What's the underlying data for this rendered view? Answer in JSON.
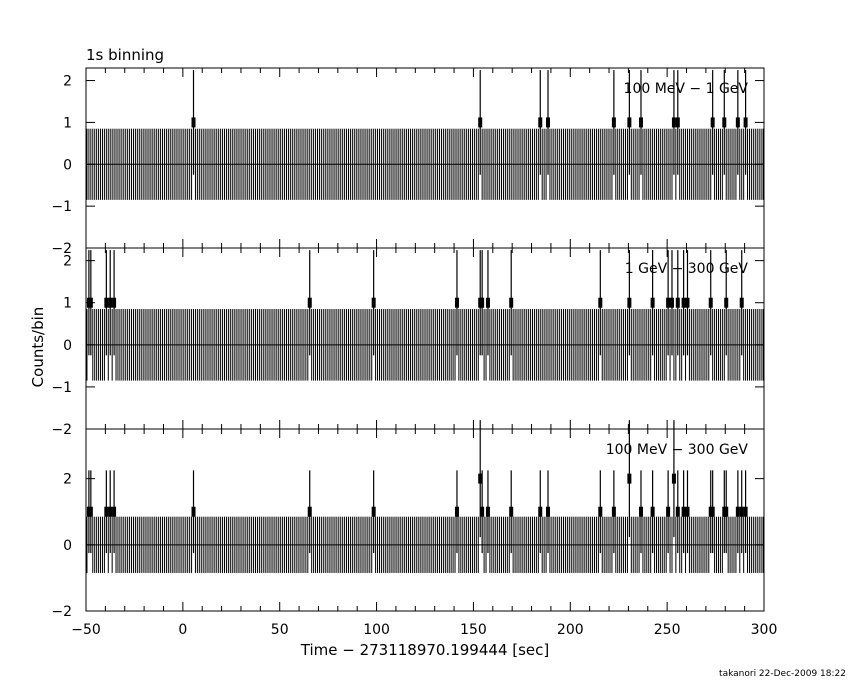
{
  "title": "1s binning",
  "xlabel": "Time − 273118970.199444 [sec]",
  "ylabel": "Counts/bin",
  "footer": "takanori 22-Dec-2009 18:22",
  "chart_data": [
    {
      "type": "bar",
      "label": "100 MeV − 1 GeV",
      "xlim": [
        -50,
        300
      ],
      "ylim": [
        -2,
        2.3
      ],
      "yticks": [
        -2,
        -1,
        0,
        1,
        2
      ],
      "x_counts1": [
        5,
        153,
        184,
        188,
        222,
        230,
        236,
        253,
        255,
        273,
        279,
        286,
        290
      ],
      "x_counts2": []
    },
    {
      "type": "bar",
      "label": "1 GeV − 300 GeV",
      "xlim": [
        -50,
        300
      ],
      "ylim": [
        -2,
        2.3
      ],
      "yticks": [
        -2,
        -1,
        0,
        1,
        2
      ],
      "x_counts1": [
        -49,
        -48,
        -40,
        -38,
        -36,
        65,
        98,
        141,
        153,
        154,
        157,
        169,
        215,
        230,
        242,
        250,
        252,
        255,
        258,
        260,
        272,
        280,
        288
      ],
      "x_counts2": []
    },
    {
      "type": "bar",
      "label": "100 MeV − 300 GeV",
      "xlim": [
        -50,
        300
      ],
      "ylim": [
        -2,
        3.5
      ],
      "yticks": [
        -2,
        0,
        2
      ],
      "x_counts1": [
        -49,
        -48,
        -40,
        -38,
        -36,
        5,
        65,
        98,
        141,
        154,
        157,
        169,
        184,
        188,
        215,
        222,
        236,
        242,
        250,
        255,
        258,
        260,
        272,
        273,
        279,
        280,
        286,
        288,
        290
      ],
      "x_counts2": [
        153,
        230,
        253
      ]
    }
  ],
  "x_axis": {
    "ticks": [
      -50,
      0,
      50,
      100,
      150,
      200,
      250,
      300
    ],
    "tick_labels": [
      "−50",
      "0",
      "50",
      "100",
      "150",
      "200",
      "250",
      "300"
    ]
  }
}
